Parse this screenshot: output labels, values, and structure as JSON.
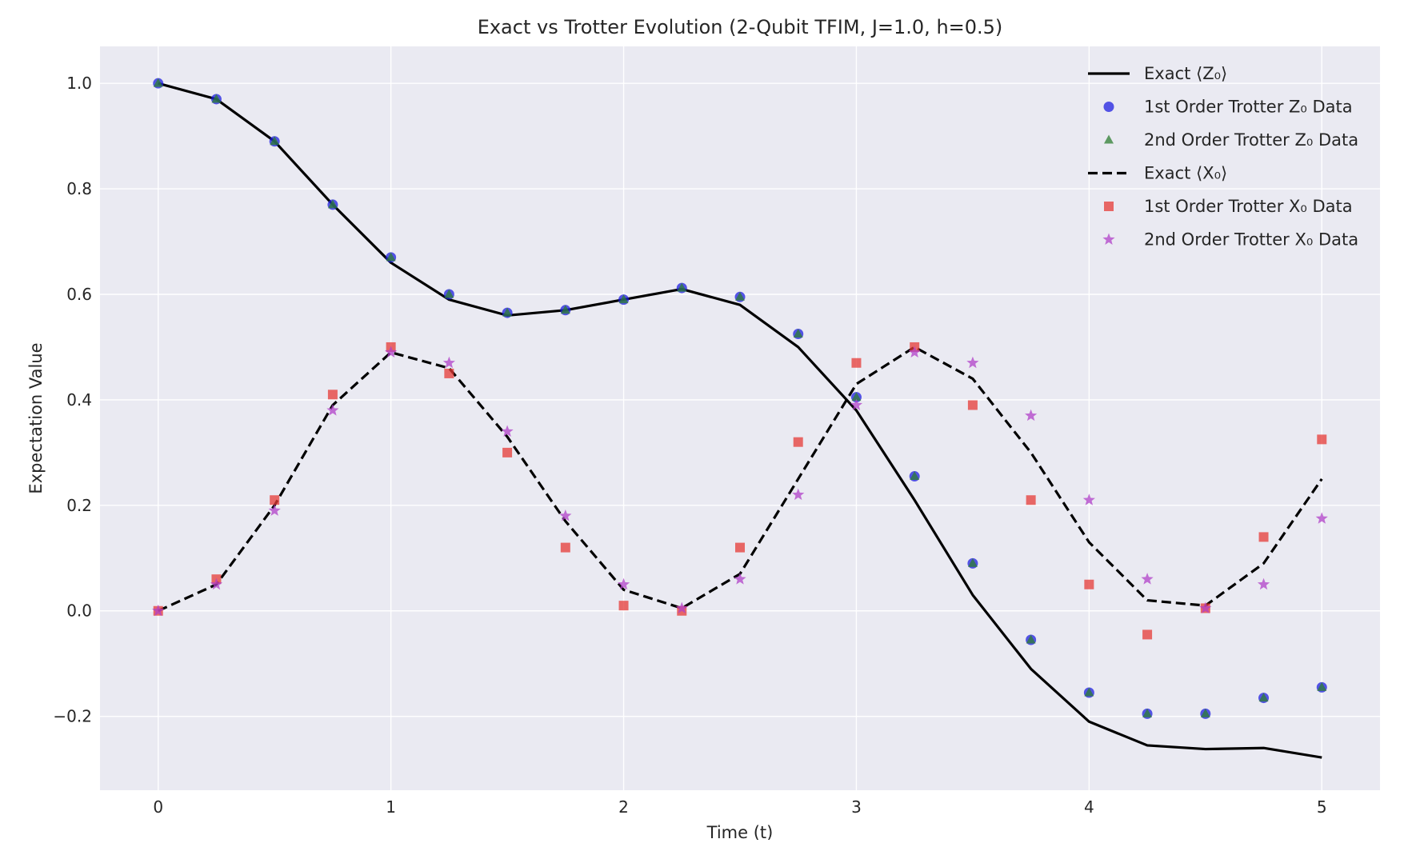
{
  "chart_data": {
    "type": "line",
    "title": "Exact vs Trotter Evolution (2-Qubit TFIM, J=1.0, h=0.5)",
    "xlabel": "Time (t)",
    "ylabel": "Expectation Value",
    "xlim": [
      -0.25,
      5.25
    ],
    "ylim": [
      -0.34,
      1.07
    ],
    "x_ticks": [
      0,
      1,
      2,
      3,
      4,
      5
    ],
    "x_tick_labels": [
      "0",
      "1",
      "2",
      "3",
      "4",
      "5"
    ],
    "y_ticks": [
      -0.2,
      0.0,
      0.2,
      0.4,
      0.6,
      0.8,
      1.0
    ],
    "y_tick_labels": [
      "−0.2",
      "0.0",
      "0.2",
      "0.4",
      "0.6",
      "0.8",
      "1.0"
    ],
    "grid": true,
    "legend_position": "top-right",
    "background": "#eaeaf2",
    "series": [
      {
        "name": "Exact ⟨Z₀⟩",
        "style": "line-solid",
        "color": "#000000",
        "x": [
          0,
          0.25,
          0.5,
          0.75,
          1.0,
          1.25,
          1.5,
          1.75,
          2.0,
          2.25,
          2.5,
          2.75,
          3.0,
          3.25,
          3.5,
          3.75,
          4.0,
          4.25,
          4.5,
          4.75,
          5.0
        ],
        "y": [
          1.0,
          0.97,
          0.89,
          0.77,
          0.66,
          0.59,
          0.56,
          0.57,
          0.59,
          0.61,
          0.58,
          0.5,
          0.38,
          0.21,
          0.03,
          -0.11,
          -0.21,
          -0.255,
          -0.262,
          -0.26,
          -0.278
        ]
      },
      {
        "name": "1st Order Trotter Z₀ Data",
        "style": "marker-circle",
        "color": "#1f1fe0",
        "x": [
          0,
          0.25,
          0.5,
          0.75,
          1.0,
          1.25,
          1.5,
          1.75,
          2.0,
          2.25,
          2.5,
          2.75,
          3.0,
          3.25,
          3.5,
          3.75,
          4.0,
          4.25,
          4.5,
          4.75,
          5.0
        ],
        "y": [
          1.0,
          0.97,
          0.89,
          0.77,
          0.67,
          0.6,
          0.565,
          0.57,
          0.59,
          0.612,
          0.595,
          0.525,
          0.405,
          0.255,
          0.09,
          -0.055,
          -0.155,
          -0.195,
          -0.195,
          -0.165,
          -0.145
        ]
      },
      {
        "name": "2nd Order Trotter Z₀ Data",
        "style": "marker-triangle",
        "color": "#2e7d32",
        "x": [
          0,
          0.25,
          0.5,
          0.75,
          1.0,
          1.25,
          1.5,
          1.75,
          2.0,
          2.25,
          2.5,
          2.75,
          3.0,
          3.25,
          3.5,
          3.75,
          4.0,
          4.25,
          4.5,
          4.75,
          5.0
        ],
        "y": [
          1.0,
          0.97,
          0.89,
          0.77,
          0.67,
          0.6,
          0.565,
          0.57,
          0.59,
          0.612,
          0.595,
          0.525,
          0.405,
          0.255,
          0.09,
          -0.055,
          -0.155,
          -0.195,
          -0.195,
          -0.165,
          -0.145
        ]
      },
      {
        "name": "Exact ⟨X₀⟩",
        "style": "line-dashed",
        "color": "#000000",
        "x": [
          0,
          0.25,
          0.5,
          0.75,
          1.0,
          1.25,
          1.5,
          1.75,
          2.0,
          2.25,
          2.5,
          2.75,
          3.0,
          3.25,
          3.5,
          3.75,
          4.0,
          4.25,
          4.5,
          4.75,
          5.0
        ],
        "y": [
          0.0,
          0.05,
          0.2,
          0.39,
          0.49,
          0.46,
          0.33,
          0.17,
          0.04,
          0.005,
          0.07,
          0.25,
          0.43,
          0.5,
          0.44,
          0.3,
          0.13,
          0.02,
          0.01,
          0.09,
          0.25
        ]
      },
      {
        "name": "1st Order Trotter X₀ Data",
        "style": "marker-square",
        "color": "#e53935",
        "x": [
          0,
          0.25,
          0.5,
          0.75,
          1.0,
          1.25,
          1.5,
          1.75,
          2.0,
          2.25,
          2.5,
          2.75,
          3.0,
          3.25,
          3.5,
          3.75,
          4.0,
          4.25,
          4.5,
          4.75,
          5.0
        ],
        "y": [
          0.0,
          0.06,
          0.21,
          0.41,
          0.5,
          0.45,
          0.3,
          0.12,
          0.01,
          0.0,
          0.12,
          0.32,
          0.47,
          0.5,
          0.39,
          0.21,
          0.05,
          -0.045,
          0.005,
          0.14,
          0.325
        ]
      },
      {
        "name": "2nd Order Trotter X₀ Data",
        "style": "marker-star",
        "color": "#b040c8",
        "x": [
          0,
          0.25,
          0.5,
          0.75,
          1.0,
          1.25,
          1.5,
          1.75,
          2.0,
          2.25,
          2.5,
          2.75,
          3.0,
          3.25,
          3.5,
          3.75,
          4.0,
          4.25,
          4.5,
          4.75,
          5.0
        ],
        "y": [
          0.0,
          0.05,
          0.19,
          0.38,
          0.49,
          0.47,
          0.34,
          0.18,
          0.05,
          0.005,
          0.06,
          0.22,
          0.39,
          0.49,
          0.47,
          0.37,
          0.21,
          0.06,
          0.005,
          0.05,
          0.175
        ]
      }
    ]
  }
}
